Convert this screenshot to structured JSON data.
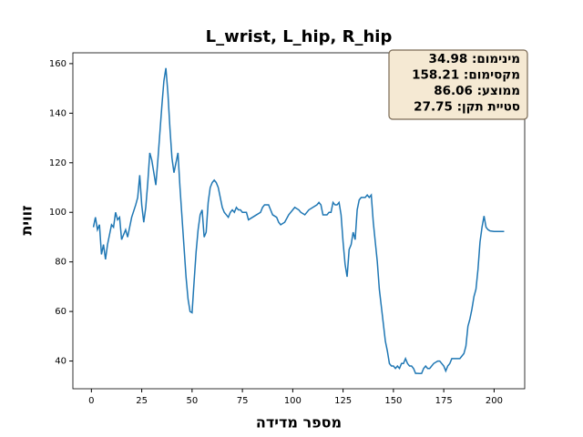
{
  "chart_data": {
    "type": "line",
    "title": "L_wrist, L_hip, R_hip",
    "xlabel": "מספר מדידה",
    "ylabel": "זווית",
    "annotations": [
      "מינימום: 34.98",
      "מקסימום: 158.21",
      "ממוצע: 86.06",
      "סטיית תקן: 27.75"
    ],
    "xlim": [
      -9.2,
      215.2
    ],
    "ylim": [
      28.82,
      164.37
    ],
    "xticks": [
      0,
      25,
      50,
      75,
      100,
      125,
      150,
      175,
      200
    ],
    "yticks": [
      40,
      60,
      80,
      100,
      120,
      140,
      160
    ],
    "series": [
      {
        "color": "#1f77b4",
        "x": [
          1,
          2,
          3,
          4,
          5,
          6,
          7,
          8,
          9,
          10,
          11,
          12,
          13,
          14,
          15,
          16,
          17,
          18,
          20,
          22,
          23,
          24,
          25,
          26,
          27,
          28,
          29,
          30,
          31,
          32,
          33,
          34,
          35,
          36,
          37,
          38,
          39,
          40,
          41,
          42,
          43,
          44,
          45,
          46,
          47,
          48,
          49,
          50,
          51,
          52,
          53,
          54,
          55,
          56,
          57,
          58,
          59,
          60,
          61,
          62,
          63,
          64,
          65,
          66,
          67,
          68,
          69,
          70,
          71,
          72,
          73,
          74,
          75,
          76,
          77,
          78,
          80,
          82,
          84,
          85,
          86,
          88,
          89,
          90,
          92,
          93,
          94,
          96,
          98,
          100,
          101,
          103,
          104,
          106,
          108,
          110,
          112,
          113,
          114,
          115,
          116,
          117,
          118,
          119,
          120,
          121,
          122,
          123,
          124,
          125,
          126,
          127,
          128,
          129,
          130,
          131,
          132,
          133,
          134,
          135,
          136,
          137,
          138,
          139,
          140,
          141,
          142,
          143,
          144,
          145,
          146,
          147,
          148,
          149,
          150,
          151,
          152,
          153,
          154,
          155,
          156,
          157,
          158,
          159,
          160,
          161,
          162,
          163,
          164,
          165,
          166,
          167,
          168,
          170,
          172,
          173,
          174,
          175,
          176,
          177,
          178,
          179,
          181,
          183,
          184,
          185,
          186,
          187,
          188,
          189,
          190,
          191,
          192,
          193,
          194,
          195,
          196,
          197,
          198,
          200,
          205
        ],
        "values": [
          94,
          98,
          93,
          95,
          83,
          87,
          81,
          87,
          91,
          95,
          94,
          100,
          97,
          98,
          89,
          91,
          93,
          90,
          98,
          103,
          106,
          115,
          103,
          96,
          102,
          112,
          124,
          121,
          116,
          111,
          121,
          132,
          143,
          153,
          158.21,
          148,
          134,
          122,
          116,
          120,
          124,
          110,
          98,
          86,
          74,
          65,
          60,
          59.5,
          72,
          84,
          93,
          99,
          101,
          90,
          92,
          104,
          110,
          112,
          113,
          112,
          110,
          106,
          102,
          100,
          99,
          98,
          100,
          101,
          100,
          102,
          101,
          101,
          100,
          100,
          100,
          97,
          98,
          99,
          100,
          102,
          103,
          103,
          101,
          99,
          98,
          96,
          95,
          96,
          99,
          101,
          102,
          101,
          100,
          99,
          101,
          102,
          103,
          104,
          103,
          99,
          99,
          99,
          100,
          100,
          104,
          103,
          103,
          104,
          99,
          88,
          79,
          74,
          85,
          87,
          92,
          89,
          101,
          105,
          106,
          106,
          106,
          107,
          106,
          107,
          96,
          88,
          80,
          69,
          62,
          55,
          48,
          44,
          39,
          38,
          38,
          37,
          38,
          37,
          39,
          39,
          41,
          39,
          38,
          38,
          37,
          35,
          35,
          34.98,
          35,
          37,
          38,
          37,
          37,
          39,
          40,
          40,
          39,
          38,
          36,
          38,
          39,
          41,
          41,
          41,
          42,
          43,
          46,
          54,
          57,
          61,
          66,
          69,
          77,
          88,
          94,
          98.5,
          94,
          93,
          92.5,
          92.3,
          92.3
        ]
      }
    ]
  }
}
